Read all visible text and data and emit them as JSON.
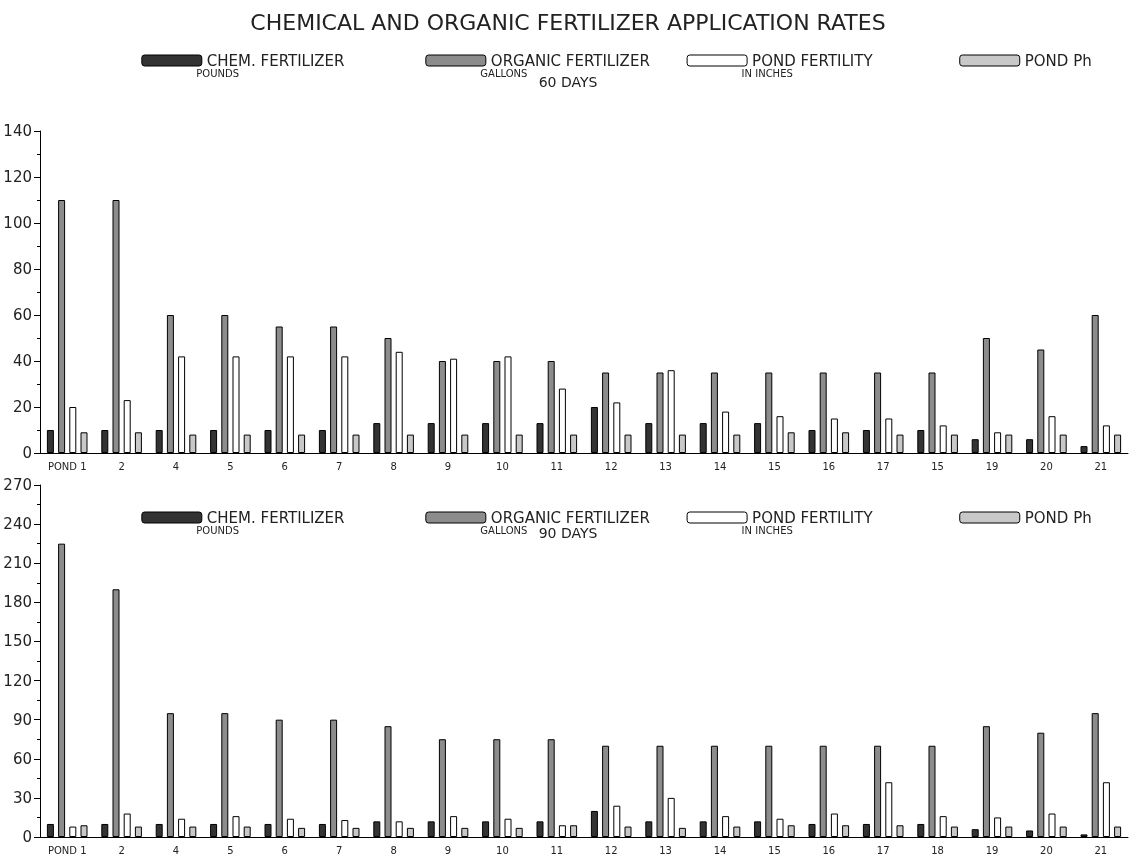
{
  "chart_data": [
    {
      "type": "bar",
      "title": "CHEMICAL AND ORGANIC FERTILIZER APPLICATION RATES",
      "subtitle": "60 DAYS",
      "annotations": [
        "POUNDS",
        "GALLONS",
        "IN INCHES"
      ],
      "categories": [
        "POND 1",
        "2",
        "4",
        "5",
        "6",
        "7",
        "8",
        "9",
        "10",
        "11",
        "12",
        "13",
        "14",
        "15",
        "16",
        "17",
        "15",
        "19",
        "20",
        "21"
      ],
      "series": [
        {
          "name": "CHEM. FERTILIZER",
          "color": "#333333",
          "values": [
            10,
            10,
            10,
            10,
            10,
            10,
            13,
            13,
            13,
            13,
            20,
            13,
            13,
            13,
            10,
            10,
            10,
            6,
            6,
            3
          ]
        },
        {
          "name": "ORGANIC FERTILIZER",
          "color": "#8c8c8c",
          "values": [
            110,
            110,
            60,
            60,
            55,
            55,
            50,
            40,
            40,
            40,
            35,
            35,
            35,
            35,
            35,
            35,
            35,
            50,
            45,
            60
          ]
        },
        {
          "name": "POND FERTILITY",
          "color": "#ffffff",
          "values": [
            20,
            23,
            42,
            42,
            42,
            42,
            44,
            41,
            42,
            28,
            22,
            36,
            18,
            16,
            15,
            15,
            12,
            9,
            16,
            12
          ]
        },
        {
          "name": "POND Ph",
          "color": "#c8c8c8",
          "values": [
            9,
            9,
            8,
            8,
            8,
            8,
            8,
            8,
            8,
            8,
            8,
            8,
            8,
            9,
            9,
            8,
            8,
            8,
            8,
            8
          ]
        }
      ],
      "ylim": [
        0,
        140
      ],
      "yticks": [
        0,
        20,
        40,
        60,
        80,
        100,
        120,
        140
      ],
      "legend": "top"
    },
    {
      "type": "bar",
      "subtitle": "90 DAYS",
      "annotations": [
        "POUNDS",
        "GALLONS",
        "IN INCHES"
      ],
      "categories": [
        "POND 1",
        "2",
        "4",
        "5",
        "6",
        "7",
        "8",
        "9",
        "10",
        "11",
        "12",
        "13",
        "14",
        "15",
        "16",
        "17",
        "18",
        "19",
        "20",
        "21"
      ],
      "series": [
        {
          "name": "CHEM. FERTILIZER",
          "color": "#333333",
          "values": [
            10,
            10,
            10,
            10,
            10,
            10,
            12,
            12,
            12,
            12,
            20,
            12,
            12,
            12,
            10,
            10,
            10,
            6,
            5,
            2
          ]
        },
        {
          "name": "ORGANIC FERTILIZER",
          "color": "#8c8c8c",
          "values": [
            225,
            190,
            95,
            95,
            90,
            90,
            85,
            75,
            75,
            75,
            70,
            70,
            70,
            70,
            70,
            70,
            70,
            85,
            80,
            95
          ]
        },
        {
          "name": "POND FERTILITY",
          "color": "#ffffff",
          "values": [
            8,
            18,
            14,
            16,
            14,
            13,
            12,
            16,
            14,
            9,
            24,
            30,
            16,
            14,
            18,
            42,
            16,
            15,
            18,
            42
          ]
        },
        {
          "name": "POND Ph",
          "color": "#c8c8c8",
          "values": [
            9,
            8,
            8,
            8,
            7,
            7,
            7,
            7,
            7,
            9,
            8,
            7,
            8,
            9,
            9,
            9,
            8,
            8,
            8,
            8
          ]
        }
      ],
      "ylim": [
        0,
        270
      ],
      "yticks": [
        0,
        30,
        60,
        90,
        120,
        150,
        180,
        210,
        240,
        270
      ],
      "legend": "top"
    }
  ]
}
